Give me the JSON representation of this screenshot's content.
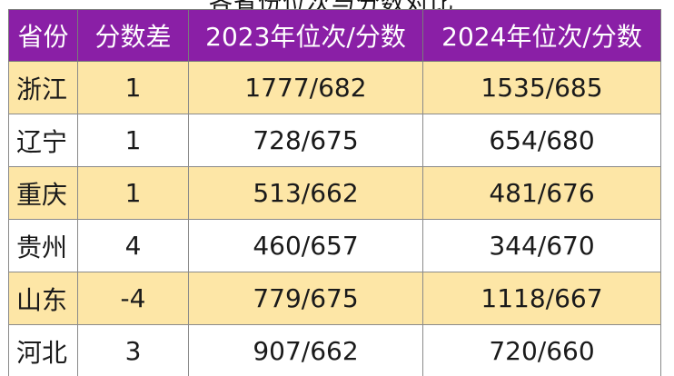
{
  "title_fragment": "各省份位次与分数对比",
  "table": {
    "headers": [
      "省份",
      "分数差",
      "2023年位次/分数",
      "2024年位次/分数"
    ],
    "rows": [
      {
        "province": "浙江",
        "diff": "1",
        "y2023": "1777/682",
        "y2024": "1535/685"
      },
      {
        "province": "辽宁",
        "diff": "1",
        "y2023": "728/675",
        "y2024": "654/680"
      },
      {
        "province": "重庆",
        "diff": "1",
        "y2023": "513/662",
        "y2024": "481/676"
      },
      {
        "province": "贵州",
        "diff": "4",
        "y2023": "460/657",
        "y2024": "344/670"
      },
      {
        "province": "山东",
        "diff": "-4",
        "y2023": "779/675",
        "y2024": "1118/667"
      },
      {
        "province": "河北",
        "diff": "3",
        "y2023": "907/662",
        "y2024": "720/660"
      }
    ]
  },
  "colors": {
    "header_bg": "#8a1fa6",
    "header_text": "#ffffff",
    "row_shaded": "#fde6a6",
    "row_plain": "#ffffff"
  }
}
